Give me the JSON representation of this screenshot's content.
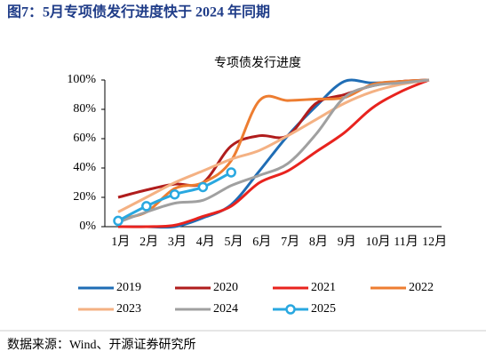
{
  "header": {
    "title": "图7：5月专项债发行进度快于 2024 年同期"
  },
  "chart_data": {
    "type": "line",
    "title": "专项债发行进度",
    "categories": [
      "1月",
      "2月",
      "3月",
      "4月",
      "5月",
      "6月",
      "7月",
      "8月",
      "9月",
      "10月",
      "11月",
      "12月"
    ],
    "ylim": [
      0,
      100
    ],
    "yticks": [
      {
        "value": 0,
        "label": "0%"
      },
      {
        "value": 20,
        "label": "20%"
      },
      {
        "value": 40,
        "label": "40%"
      },
      {
        "value": 60,
        "label": "60%"
      },
      {
        "value": 80,
        "label": "80%"
      },
      {
        "value": 100,
        "label": "100%"
      }
    ],
    "series": [
      {
        "name": "2019",
        "color": "#1f6db5",
        "values": [
          0,
          0,
          0,
          6,
          15,
          38,
          62,
          82,
          99,
          98,
          99,
          100
        ]
      },
      {
        "name": "2020",
        "color": "#b01c1c",
        "values": [
          20,
          25,
          29,
          30,
          55,
          62,
          62,
          84,
          90,
          96,
          99,
          100
        ]
      },
      {
        "name": "2021",
        "color": "#e8231e",
        "values": [
          0,
          0,
          1,
          7,
          14,
          30,
          38,
          51,
          64,
          81,
          92,
          100
        ]
      },
      {
        "name": "2022",
        "color": "#ed7d31",
        "values": [
          5,
          10,
          26,
          30,
          45,
          86,
          86,
          87,
          88,
          97,
          99,
          100
        ]
      },
      {
        "name": "2023",
        "color": "#f4b183",
        "values": [
          10,
          20,
          30,
          38,
          46,
          52,
          62,
          73,
          84,
          92,
          97,
          100
        ]
      },
      {
        "name": "2024",
        "color": "#a0a0a0",
        "values": [
          3,
          10,
          16,
          18,
          28,
          35,
          43,
          63,
          88,
          96,
          98,
          100
        ]
      },
      {
        "name": "2025",
        "color": "#29a8e0",
        "marker": true,
        "values": [
          4,
          14,
          22,
          27,
          37,
          null,
          null,
          null,
          null,
          null,
          null,
          null
        ]
      }
    ]
  },
  "source": "数据来源：Wind、开源证券研究所"
}
